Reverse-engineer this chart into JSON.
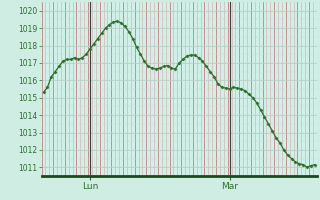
{
  "pressure_values": [
    1015.3,
    1015.6,
    1016.2,
    1016.5,
    1016.8,
    1017.1,
    1017.2,
    1017.2,
    1017.3,
    1017.2,
    1017.3,
    1017.5,
    1017.8,
    1018.1,
    1018.4,
    1018.7,
    1019.0,
    1019.2,
    1019.35,
    1019.4,
    1019.3,
    1019.1,
    1018.8,
    1018.4,
    1017.9,
    1017.5,
    1017.1,
    1016.8,
    1016.7,
    1016.65,
    1016.7,
    1016.8,
    1016.85,
    1016.7,
    1016.65,
    1017.0,
    1017.2,
    1017.4,
    1017.45,
    1017.45,
    1017.3,
    1017.1,
    1016.8,
    1016.5,
    1016.2,
    1015.8,
    1015.6,
    1015.55,
    1015.5,
    1015.6,
    1015.55,
    1015.5,
    1015.4,
    1015.2,
    1015.0,
    1014.7,
    1014.3,
    1013.9,
    1013.5,
    1013.1,
    1012.7,
    1012.4,
    1012.0,
    1011.7,
    1011.5,
    1011.3,
    1011.2,
    1011.15,
    1011.0,
    1011.1,
    1011.15
  ],
  "ylim": [
    1010.5,
    1020.5
  ],
  "yticks": [
    1011,
    1012,
    1013,
    1014,
    1015,
    1016,
    1017,
    1018,
    1019,
    1020
  ],
  "background_color": "#d0ede4",
  "plot_bg_color": "#d0f0e8",
  "line_color": "#2d6e2d",
  "marker_color": "#2d6e2d",
  "grid_major_x_color": "#c08080",
  "grid_minor_x_color": "#d4a0a0",
  "grid_major_y_color": "#b0c8c0",
  "grid_minor_y_color": "#c8dcd8",
  "vline_color": "#404040",
  "bottom_spine_color": "#1a4a1a",
  "lun_tick_index": 12,
  "mar_tick_index": 48,
  "n_points": 71
}
